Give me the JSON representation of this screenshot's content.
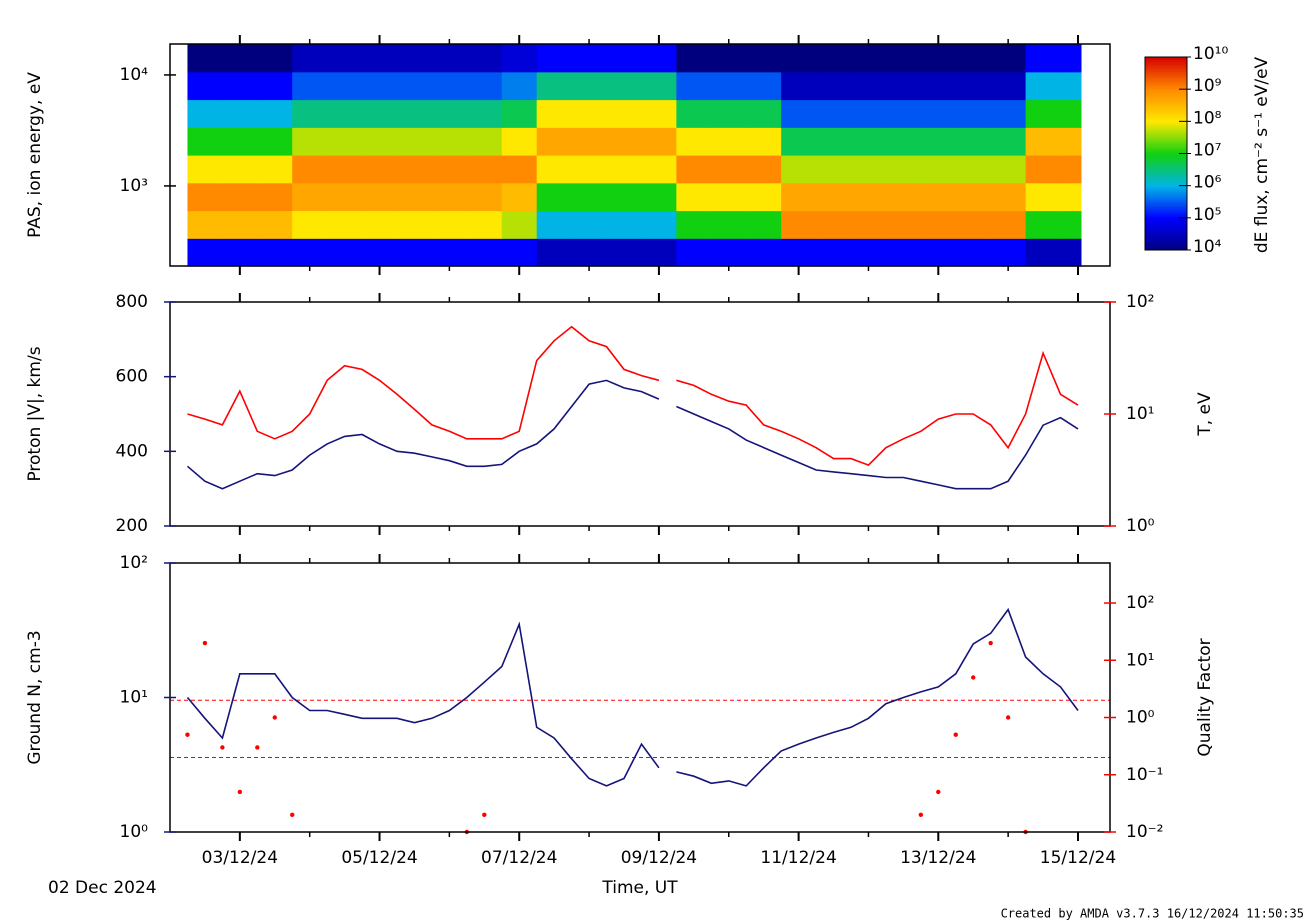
{
  "chart_data": [
    {
      "type": "heatmap",
      "ylabel": "PAS, ion energy, eV",
      "ylim": [
        190,
        19000
      ],
      "ylog": true,
      "yticks": [
        {
          "value": 1000,
          "label": "10³"
        },
        {
          "value": 10000,
          "label": "10⁴"
        }
      ],
      "x_bins": [
        "2024-12-02T06:00",
        "2024-12-02T18:00",
        "2024-12-03T06:00",
        "2024-12-03T18:00",
        "2024-12-04T06:00",
        "2024-12-04T18:00",
        "2024-12-05T06:00",
        "2024-12-05T18:00",
        "2024-12-06T06:00",
        "2024-12-06T18:00",
        "2024-12-07T06:00",
        "2024-12-07T18:00",
        "2024-12-08T06:00",
        "2024-12-08T18:00",
        "2024-12-09T06:00",
        "2024-12-09T18:00",
        "2024-12-10T06:00",
        "2024-12-10T18:00",
        "2024-12-11T06:00",
        "2024-12-11T18:00",
        "2024-12-12T06:00",
        "2024-12-12T18:00",
        "2024-12-13T06:00",
        "2024-12-13T18:00",
        "2024-12-14T06:00",
        "2024-12-14T18:00",
        "2024-12-15T01:00"
      ],
      "y_bins": [
        190,
        338,
        601,
        1069,
        1900,
        3379,
        6008,
        10685,
        19000
      ],
      "values": [
        [
          100000.0,
          100000.0,
          100000.0,
          100000.0,
          100000.0,
          100000.0,
          100000.0,
          100000.0,
          100000.0,
          100000.0,
          30000.0,
          30000.0,
          30000.0,
          30000.0,
          100000.0,
          100000.0,
          100000.0,
          100000.0,
          100000.0,
          100000.0,
          100000.0,
          100000.0,
          100000.0,
          100000.0,
          30000.0,
          30000.0
        ],
        [
          300000000.0,
          300000000.0,
          300000000.0,
          100000000.0,
          100000000.0,
          100000000.0,
          100000000.0,
          100000000.0,
          100000000.0,
          50000000.0,
          1000000.0,
          1000000.0,
          1000000.0,
          1000000.0,
          10000000.0,
          10000000.0,
          10000000.0,
          1000000000.0,
          1000000000.0,
          1000000000.0,
          1000000000.0,
          1000000000.0,
          1000000000.0,
          1000000000.0,
          10000000.0,
          10000000.0
        ],
        [
          1000000000.0,
          1000000000.0,
          1000000000.0,
          500000000.0,
          500000000.0,
          500000000.0,
          500000000.0,
          500000000.0,
          500000000.0,
          300000000.0,
          10000000.0,
          10000000.0,
          10000000.0,
          10000000.0,
          100000000.0,
          100000000.0,
          100000000.0,
          500000000.0,
          500000000.0,
          500000000.0,
          500000000.0,
          500000000.0,
          500000000.0,
          500000000.0,
          100000000.0,
          100000000.0
        ],
        [
          100000000.0,
          100000000.0,
          100000000.0,
          1000000000.0,
          1000000000.0,
          1000000000.0,
          1000000000.0,
          1000000000.0,
          1000000000.0,
          1000000000.0,
          100000000.0,
          100000000.0,
          100000000.0,
          100000000.0,
          1000000000.0,
          1000000000.0,
          1000000000.0,
          50000000.0,
          50000000.0,
          50000000.0,
          50000000.0,
          50000000.0,
          50000000.0,
          50000000.0,
          1000000000.0,
          1000000000.0
        ],
        [
          10000000.0,
          10000000.0,
          10000000.0,
          50000000.0,
          50000000.0,
          50000000.0,
          50000000.0,
          50000000.0,
          50000000.0,
          100000000.0,
          500000000.0,
          500000000.0,
          500000000.0,
          500000000.0,
          100000000.0,
          100000000.0,
          100000000.0,
          5000000.0,
          5000000.0,
          5000000.0,
          5000000.0,
          5000000.0,
          5000000.0,
          5000000.0,
          300000000.0,
          300000000.0
        ],
        [
          1000000.0,
          1000000.0,
          1000000.0,
          3000000.0,
          3000000.0,
          3000000.0,
          3000000.0,
          3000000.0,
          3000000.0,
          5000000.0,
          100000000.0,
          100000000.0,
          100000000.0,
          100000000.0,
          5000000.0,
          5000000.0,
          5000000.0,
          300000.0,
          300000.0,
          300000.0,
          300000.0,
          300000.0,
          300000.0,
          300000.0,
          10000000.0,
          10000000.0
        ],
        [
          100000.0,
          100000.0,
          100000.0,
          300000.0,
          300000.0,
          300000.0,
          300000.0,
          300000.0,
          300000.0,
          500000.0,
          3000000.0,
          3000000.0,
          3000000.0,
          3000000.0,
          300000.0,
          300000.0,
          300000.0,
          30000.0,
          30000.0,
          30000.0,
          30000.0,
          30000.0,
          30000.0,
          30000.0,
          1000000.0,
          1000000.0
        ],
        [
          10000.0,
          10000.0,
          10000.0,
          30000.0,
          30000.0,
          30000.0,
          30000.0,
          30000.0,
          30000.0,
          50000.0,
          100000.0,
          100000.0,
          100000.0,
          100000.0,
          10000.0,
          10000.0,
          10000.0,
          10000.0,
          10000.0,
          10000.0,
          10000.0,
          10000.0,
          10000.0,
          10000.0,
          100000.0,
          100000.0
        ]
      ],
      "colormap": [
        "#00007f",
        "#0000ff",
        "#00b4e6",
        "#10d010",
        "#ffe800",
        "#ff8a00",
        "#d80000"
      ],
      "colorbar": {
        "label": "dE flux, cm⁻² s⁻¹ eV/eV",
        "lim": [
          10000,
          10000000000
        ],
        "ticks": [
          {
            "value": 10000,
            "label": "10⁴"
          },
          {
            "value": 100000,
            "label": "10⁵"
          },
          {
            "value": 1000000,
            "label": "10⁶"
          },
          {
            "value": 10000000,
            "label": "10⁷"
          },
          {
            "value": 100000000,
            "label": "10⁸"
          },
          {
            "value": 1000000000,
            "label": "10⁹"
          },
          {
            "value": 10000000000,
            "label": "10¹⁰"
          }
        ]
      }
    },
    {
      "type": "line",
      "ylabel": "Proton |V|, km/s",
      "y2label": "T, eV",
      "ylim": [
        200,
        800
      ],
      "yticks": [
        200,
        400,
        600,
        800
      ],
      "y2lim": [
        1,
        100
      ],
      "y2log": true,
      "y2ticks": [
        {
          "value": 1,
          "label": "10⁰"
        },
        {
          "value": 10,
          "label": "10¹"
        },
        {
          "value": 100,
          "label": "10²"
        }
      ],
      "x": [
        "2024-12-02T06:00",
        "2024-12-02T12:00",
        "2024-12-02T18:00",
        "2024-12-03T00:00",
        "2024-12-03T06:00",
        "2024-12-03T12:00",
        "2024-12-03T18:00",
        "2024-12-04T00:00",
        "2024-12-04T06:00",
        "2024-12-04T12:00",
        "2024-12-04T18:00",
        "2024-12-05T00:00",
        "2024-12-05T06:00",
        "2024-12-05T12:00",
        "2024-12-05T18:00",
        "2024-12-06T00:00",
        "2024-12-06T06:00",
        "2024-12-06T12:00",
        "2024-12-06T18:00",
        "2024-12-07T00:00",
        "2024-12-07T06:00",
        "2024-12-07T12:00",
        "2024-12-07T18:00",
        "2024-12-08T00:00",
        "2024-12-08T06:00",
        "2024-12-08T12:00",
        "2024-12-08T18:00",
        "2024-12-09T00:00",
        "2024-12-09T03:00",
        "2024-12-09T06:00",
        "2024-12-09T12:00",
        "2024-12-09T18:00",
        "2024-12-10T00:00",
        "2024-12-10T06:00",
        "2024-12-10T12:00",
        "2024-12-10T18:00",
        "2024-12-11T00:00",
        "2024-12-11T06:00",
        "2024-12-11T12:00",
        "2024-12-11T18:00",
        "2024-12-12T00:00",
        "2024-12-12T06:00",
        "2024-12-12T12:00",
        "2024-12-12T18:00",
        "2024-12-13T00:00",
        "2024-12-13T06:00",
        "2024-12-13T12:00",
        "2024-12-13T18:00",
        "2024-12-14T00:00",
        "2024-12-14T06:00",
        "2024-12-14T12:00",
        "2024-12-14T18:00",
        "2024-12-15T00:00"
      ],
      "series": [
        {
          "color": "#14147a",
          "axis": "y",
          "values": [
            360,
            320,
            300,
            320,
            340,
            335,
            350,
            390,
            420,
            440,
            445,
            420,
            400,
            395,
            385,
            375,
            360,
            360,
            365,
            400,
            420,
            460,
            520,
            580,
            590,
            570,
            560,
            540,
            null,
            520,
            500,
            480,
            460,
            430,
            410,
            390,
            370,
            350,
            345,
            340,
            335,
            330,
            330,
            320,
            310,
            300,
            300,
            300,
            320,
            390,
            470,
            490,
            460
          ]
        },
        {
          "color": "#ff0000",
          "axis": "y2",
          "values": [
            10,
            9,
            8,
            16,
            7,
            6,
            7,
            10,
            20,
            27,
            25,
            20,
            15,
            11,
            8,
            7,
            6,
            6,
            6,
            7,
            30,
            45,
            60,
            45,
            40,
            25,
            22,
            20,
            null,
            20,
            18,
            15,
            13,
            12,
            8,
            7,
            6,
            5,
            4,
            4,
            3.5,
            5,
            6,
            7,
            9,
            10,
            10,
            8,
            5,
            10,
            35,
            15,
            12
          ]
        }
      ]
    },
    {
      "type": "line",
      "ylabel": "Ground N, cm-3",
      "y2label": "Quality Factor",
      "xlabel": "Time, UT",
      "start_label": "02 Dec 2024",
      "xlim": [
        "2024-12-02T00:00",
        "2024-12-15T11:00"
      ],
      "xticks": [
        {
          "value": "2024-12-03",
          "label": "03/12/24"
        },
        {
          "value": "2024-12-05",
          "label": "05/12/24"
        },
        {
          "value": "2024-12-07",
          "label": "07/12/24"
        },
        {
          "value": "2024-12-09",
          "label": "09/12/24"
        },
        {
          "value": "2024-12-11",
          "label": "11/12/24"
        },
        {
          "value": "2024-12-13",
          "label": "13/12/24"
        },
        {
          "value": "2024-12-15",
          "label": "15/12/24"
        }
      ],
      "xminorticks": [
        "2024-12-04",
        "2024-12-06",
        "2024-12-08",
        "2024-12-10",
        "2024-12-12",
        "2024-12-14"
      ],
      "ylim": [
        1,
        100
      ],
      "ylog": true,
      "yticks": [
        {
          "value": 1,
          "label": "10⁰"
        },
        {
          "value": 10,
          "label": "10¹"
        },
        {
          "value": 100,
          "label": "10²"
        }
      ],
      "y2lim": [
        0.01,
        500
      ],
      "y2log": true,
      "y2ticks": [
        {
          "value": 0.01,
          "label": "10⁻²"
        },
        {
          "value": 0.1,
          "label": "10⁻¹"
        },
        {
          "value": 1,
          "label": "10⁰"
        },
        {
          "value": 10,
          "label": "10¹"
        },
        {
          "value": 100,
          "label": "10²"
        }
      ],
      "hlines": [
        2,
        0.2
      ],
      "hline_color": "#ff0000",
      "x": [
        "2024-12-02T06:00",
        "2024-12-02T12:00",
        "2024-12-02T18:00",
        "2024-12-03T00:00",
        "2024-12-03T06:00",
        "2024-12-03T12:00",
        "2024-12-03T18:00",
        "2024-12-04T00:00",
        "2024-12-04T06:00",
        "2024-12-04T12:00",
        "2024-12-04T18:00",
        "2024-12-05T00:00",
        "2024-12-05T06:00",
        "2024-12-05T12:00",
        "2024-12-05T18:00",
        "2024-12-06T00:00",
        "2024-12-06T06:00",
        "2024-12-06T12:00",
        "2024-12-06T18:00",
        "2024-12-07T00:00",
        "2024-12-07T06:00",
        "2024-12-07T12:00",
        "2024-12-07T18:00",
        "2024-12-08T00:00",
        "2024-12-08T06:00",
        "2024-12-08T12:00",
        "2024-12-08T18:00",
        "2024-12-09T00:00",
        "2024-12-09T03:00",
        "2024-12-09T06:00",
        "2024-12-09T12:00",
        "2024-12-09T18:00",
        "2024-12-10T00:00",
        "2024-12-10T06:00",
        "2024-12-10T12:00",
        "2024-12-10T18:00",
        "2024-12-11T00:00",
        "2024-12-11T06:00",
        "2024-12-11T12:00",
        "2024-12-11T18:00",
        "2024-12-12T00:00",
        "2024-12-12T06:00",
        "2024-12-12T12:00",
        "2024-12-12T18:00",
        "2024-12-13T00:00",
        "2024-12-13T06:00",
        "2024-12-13T12:00",
        "2024-12-13T18:00",
        "2024-12-14T00:00",
        "2024-12-14T06:00",
        "2024-12-14T12:00",
        "2024-12-14T18:00",
        "2024-12-15T00:00"
      ],
      "series": [
        {
          "color": "#14147a",
          "axis": "y",
          "values": [
            10,
            7,
            5,
            15,
            15,
            15,
            10,
            8,
            8,
            7.5,
            7,
            7,
            7,
            6.5,
            7,
            8,
            10,
            13,
            17,
            35,
            6,
            5,
            3.5,
            2.5,
            2.2,
            2.5,
            4.5,
            3,
            null,
            2.8,
            2.6,
            2.3,
            2.4,
            2.2,
            3,
            4,
            4.5,
            5,
            5.5,
            6,
            7,
            9,
            10,
            11,
            12,
            15,
            25,
            30,
            45,
            20,
            15,
            12,
            8
          ]
        },
        {
          "color": "#ff0000",
          "axis": "y2",
          "type": "scatter",
          "values": [
            0.5,
            20,
            0.3,
            0.05,
            0.3,
            1,
            0.02,
            null,
            null,
            null,
            null,
            null,
            null,
            null,
            null,
            null,
            0.01,
            0.02,
            null,
            null,
            null,
            null,
            null,
            null,
            null,
            null,
            null,
            null,
            null,
            null,
            null,
            null,
            null,
            null,
            null,
            null,
            null,
            null,
            null,
            null,
            null,
            null,
            null,
            0.02,
            0.05,
            0.5,
            5,
            20,
            1,
            0.01,
            null,
            null,
            null
          ]
        }
      ]
    }
  ],
  "footer": "Created by AMDA v3.7.3 16/12/2024 11:50:35"
}
